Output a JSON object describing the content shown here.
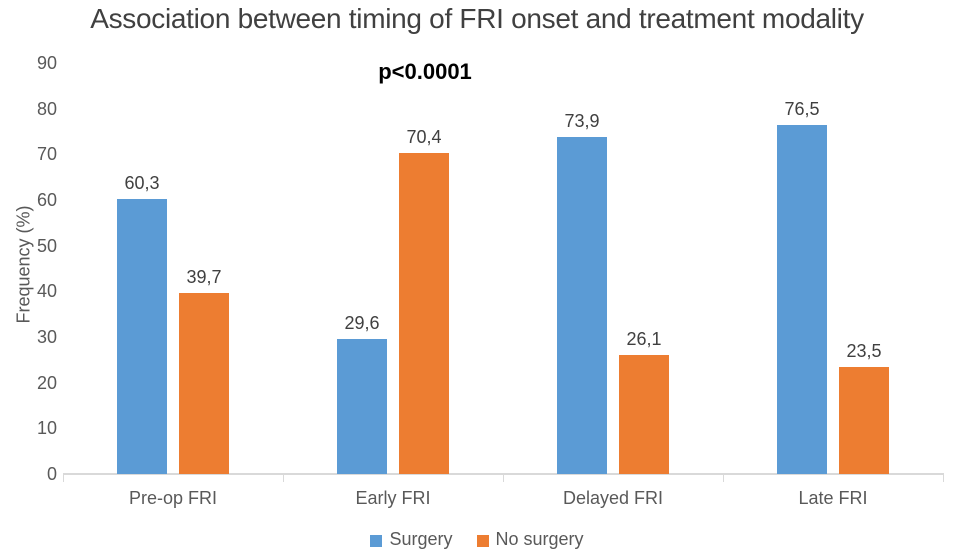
{
  "chart_data": {
    "type": "bar",
    "title": "Association between timing of FRI onset and treatment modality",
    "annotation": "p<0.0001",
    "ylabel": "Frequency (%)",
    "xlabel": "",
    "ylim": [
      0,
      90
    ],
    "yticks": [
      0,
      10,
      20,
      30,
      40,
      50,
      60,
      70,
      80,
      90
    ],
    "gridlines": false,
    "legend_position": "bottom",
    "decimal_separator": ",",
    "categories": [
      "Pre-op FRI",
      "Early FRI",
      "Delayed FRI",
      "Late FRI"
    ],
    "series": [
      {
        "name": "Surgery",
        "color": "#5B9BD5",
        "values": [
          60.3,
          29.6,
          73.9,
          76.5
        ],
        "labels": [
          "60,3",
          "29,6",
          "73,9",
          "76,5"
        ]
      },
      {
        "name": "No surgery",
        "color": "#ED7D31",
        "values": [
          39.7,
          70.4,
          26.1,
          23.5
        ],
        "labels": [
          "39,7",
          "70,4",
          "26,1",
          "23,5"
        ]
      }
    ]
  },
  "colors": {
    "background": "#FFFFFF",
    "title_text": "#404040",
    "axis_text": "#595959",
    "value_label_text": "#404040",
    "axis_line": "#D9D9D9",
    "annotation_text": "#000000"
  }
}
